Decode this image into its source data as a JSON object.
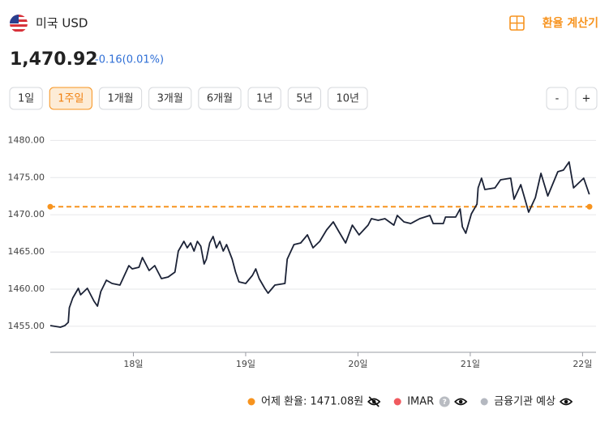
{
  "header": {
    "title": "미국 USD",
    "calculator": "환율 계산기",
    "price": "1,470.92",
    "change": "-0.16(0.01%)"
  },
  "periods": {
    "items": [
      "1일",
      "1주일",
      "1개월",
      "3개월",
      "6개월",
      "1년",
      "5년",
      "10년"
    ],
    "selected": 1
  },
  "zoom": [
    "-",
    "+"
  ],
  "chart_data": {
    "type": "line",
    "color": "#1b2236",
    "x": [
      17.26,
      17.35,
      17.39,
      17.42,
      17.43,
      17.46,
      17.51,
      17.53,
      17.59,
      17.65,
      17.68,
      17.71,
      17.76,
      17.81,
      17.88,
      17.94,
      17.96,
      17.99,
      18.05,
      18.08,
      18.14,
      18.19,
      18.25,
      18.31,
      18.37,
      18.4,
      18.45,
      18.48,
      18.51,
      18.54,
      18.57,
      18.6,
      18.63,
      18.65,
      18.68,
      18.71,
      18.74,
      18.77,
      18.8,
      18.83,
      18.88,
      18.91,
      18.94,
      19.0,
      19.06,
      19.09,
      19.12,
      19.17,
      19.2,
      19.26,
      19.35,
      19.37,
      19.43,
      19.49,
      19.55,
      19.6,
      19.66,
      19.72,
      19.78,
      19.83,
      19.89,
      19.95,
      20.01,
      20.09,
      20.12,
      20.18,
      20.24,
      20.32,
      20.35,
      20.41,
      20.47,
      20.55,
      20.64,
      20.67,
      20.76,
      20.78,
      20.87,
      20.91,
      20.93,
      20.96,
      21.01,
      21.06,
      21.07,
      21.1,
      21.13,
      21.22,
      21.27,
      21.36,
      21.39,
      21.45,
      21.5,
      21.52,
      21.58,
      21.63,
      21.69,
      21.78,
      21.83,
      21.88,
      21.92,
      22.01,
      22.06
    ],
    "values": [
      1455.09,
      1454.88,
      1455.09,
      1455.53,
      1457.49,
      1458.8,
      1460.11,
      1459.23,
      1460.11,
      1458.36,
      1457.71,
      1459.67,
      1461.19,
      1460.76,
      1460.54,
      1462.5,
      1463.16,
      1462.72,
      1462.94,
      1464.25,
      1462.5,
      1463.16,
      1461.41,
      1461.63,
      1462.28,
      1465.12,
      1466.42,
      1465.55,
      1466.21,
      1465.12,
      1466.42,
      1465.77,
      1463.37,
      1464.03,
      1466.21,
      1467.08,
      1465.55,
      1466.42,
      1465.12,
      1465.99,
      1464.03,
      1462.28,
      1460.98,
      1460.76,
      1461.85,
      1462.72,
      1461.41,
      1460.11,
      1459.45,
      1460.54,
      1460.76,
      1464.03,
      1465.99,
      1466.21,
      1467.29,
      1465.55,
      1466.42,
      1467.95,
      1469.04,
      1467.73,
      1466.21,
      1468.6,
      1467.29,
      1468.6,
      1469.47,
      1469.26,
      1469.47,
      1468.6,
      1469.91,
      1469.04,
      1468.82,
      1469.47,
      1469.91,
      1468.82,
      1468.82,
      1469.69,
      1469.69,
      1470.78,
      1468.38,
      1467.51,
      1470.13,
      1471.43,
      1473.61,
      1474.92,
      1473.39,
      1473.61,
      1474.7,
      1474.92,
      1472.09,
      1474.05,
      1471.43,
      1470.35,
      1472.31,
      1475.57,
      1472.52,
      1475.79,
      1476.01,
      1477.1,
      1473.61,
      1474.92,
      1472.74
    ],
    "xlim": [
      17.26,
      22.12
    ],
    "xticks": [
      {
        "value": 18,
        "label": "18일"
      },
      {
        "value": 19,
        "label": "19일"
      },
      {
        "value": 20,
        "label": "20일"
      },
      {
        "value": 21,
        "label": "21일"
      },
      {
        "value": 22,
        "label": "22일"
      }
    ],
    "ylim": [
      1451.5,
      1482
    ],
    "yticks": [
      {
        "value": 1455,
        "label": "1455.00"
      },
      {
        "value": 1460,
        "label": "1460.00"
      },
      {
        "value": 1465,
        "label": "1465.00"
      },
      {
        "value": 1470,
        "label": "1470.00"
      },
      {
        "value": 1475,
        "label": "1475.00"
      },
      {
        "value": 1480,
        "label": "1480.00"
      }
    ],
    "grid": true,
    "reference": {
      "name": "어제 환율: 1471.08원",
      "value": 1471.08,
      "color": "#f7931e"
    },
    "legend": [
      {
        "name": "IMAR",
        "color": "#f05a5f"
      },
      {
        "name": "금융기관 예상",
        "color": "#b4b8c0"
      }
    ]
  }
}
